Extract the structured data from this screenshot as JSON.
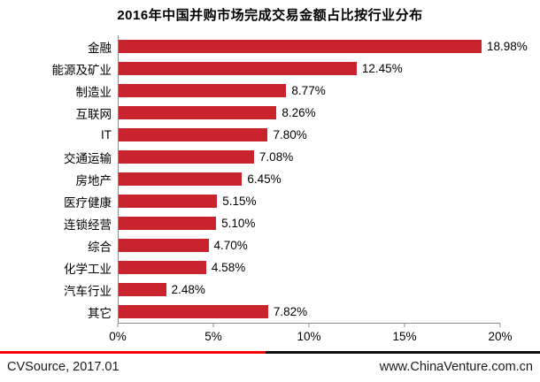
{
  "title": "2016年中国并购市场完成交易金额占比按行业分布",
  "chart_data": {
    "type": "bar",
    "orientation": "horizontal",
    "title": "2016年中国并购市场完成交易金额占比按行业分布",
    "categories": [
      "金融",
      "能源及矿业",
      "制造业",
      "互联网",
      "IT",
      "交通运输",
      "房地产",
      "医疗健康",
      "连锁经营",
      "综合",
      "化学工业",
      "汽车行业",
      "其它"
    ],
    "values": [
      18.98,
      12.45,
      8.77,
      8.26,
      7.8,
      7.08,
      6.45,
      5.15,
      5.1,
      4.7,
      4.58,
      2.48,
      7.82
    ],
    "value_labels": [
      "18.98%",
      "12.45%",
      "8.77%",
      "8.26%",
      "7.80%",
      "7.08%",
      "6.45%",
      "5.15%",
      "5.10%",
      "4.70%",
      "4.58%",
      "2.48%",
      "7.82%"
    ],
    "x_ticks": [
      "0%",
      "5%",
      "10%",
      "15%",
      "20%"
    ],
    "xlim": [
      0,
      20
    ],
    "bar_color": "#c9232d",
    "axis_color": "#8c8c8c",
    "grid": false,
    "legend": "none"
  },
  "footer": {
    "source": "CVSource, 2017.01",
    "website": "www.ChinaVenture.com.cn",
    "divider_left_color": "#fe0000",
    "divider_right_color": "#111111"
  }
}
